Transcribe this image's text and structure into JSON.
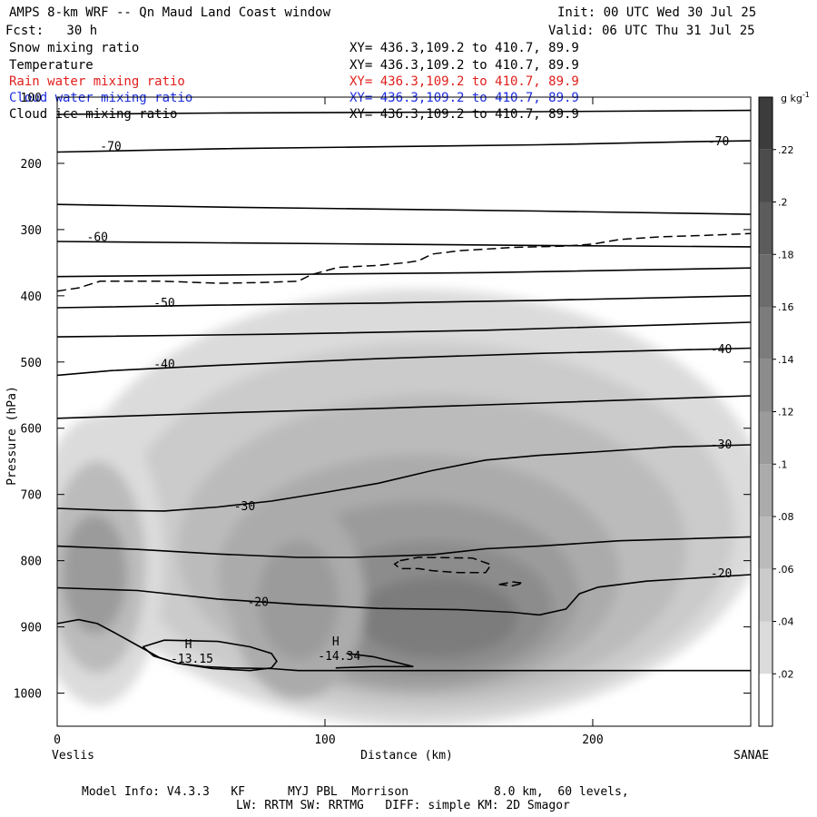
{
  "header": {
    "title": "AMPS 8-km WRF -- Qn Maud Land Coast window",
    "init": "Init: 00 UTC Wed 30 Jul 25",
    "forecast": "Fcst:   30 h",
    "valid": "Valid: 06 UTC Thu 31 Jul 25"
  },
  "fields": [
    {
      "name": "Snow mixing ratio",
      "xy": "XY= 436.3,109.2 to 410.7, 89.9",
      "color": "#000000"
    },
    {
      "name": "Temperature",
      "xy": "XY= 436.3,109.2 to 410.7, 89.9",
      "color": "#000000"
    },
    {
      "name": "Rain water mixing ratio",
      "xy": "XY= 436.3,109.2 to 410.7, 89.9",
      "color": "#e0201c"
    },
    {
      "name": "Cloud water mixing ratio",
      "xy": "XY= 436.3,109.2 to 410.7, 89.9",
      "color": "#1c2ee0"
    },
    {
      "name": "Cloud ice mixing ratio",
      "xy": "XY= 436.3,109.2 to 410.7, 89.9",
      "color": "#000000"
    }
  ],
  "chart_data": {
    "type": "cross-section contour",
    "xlabel": "Distance (km)",
    "ylabel": "Pressure (hPa)",
    "xlim": [
      0,
      259
    ],
    "ylim": [
      1050,
      100
    ],
    "x_ticks": [
      0,
      100,
      200
    ],
    "y_ticks": [
      100,
      200,
      300,
      400,
      500,
      600,
      700,
      800,
      900,
      1000
    ],
    "endpoint_left": "Veslis",
    "endpoint_right": "SANAE",
    "colorbar": {
      "unit": "g kg",
      "unit_exponent": "-1",
      "levels": [
        0.02,
        0.04,
        0.06,
        0.08,
        0.1,
        0.12,
        0.14,
        0.16,
        0.18,
        0.2,
        0.22
      ],
      "tick_labels": [
        ".02",
        ".04",
        ".06",
        ".08",
        ".1",
        ".12",
        ".14",
        ".16",
        ".18",
        ".2",
        ".22"
      ]
    },
    "isotherms": [
      {
        "value": -75,
        "points": [
          [
            0,
            126
          ],
          [
            60,
            124
          ],
          [
            120,
            123
          ],
          [
            180,
            122
          ],
          [
            259,
            120
          ]
        ]
      },
      {
        "value": -70,
        "points": [
          [
            0,
            183
          ],
          [
            60,
            178
          ],
          [
            120,
            175
          ],
          [
            180,
            172
          ],
          [
            240,
            167
          ],
          [
            259,
            166
          ]
        ]
      },
      {
        "value": -65,
        "points": [
          [
            0,
            262
          ],
          [
            60,
            266
          ],
          [
            120,
            269
          ],
          [
            180,
            272
          ],
          [
            259,
            277
          ]
        ]
      },
      {
        "value": -60,
        "points": [
          [
            0,
            318
          ],
          [
            60,
            320
          ],
          [
            120,
            322
          ],
          [
            180,
            324
          ],
          [
            259,
            326
          ]
        ]
      },
      {
        "value": -55,
        "points": [
          [
            0,
            371
          ],
          [
            80,
            368
          ],
          [
            160,
            365
          ],
          [
            259,
            358
          ]
        ]
      },
      {
        "value": -50,
        "points": [
          [
            0,
            418
          ],
          [
            60,
            414
          ],
          [
            120,
            411
          ],
          [
            180,
            407
          ],
          [
            259,
            400
          ]
        ]
      },
      {
        "value": -45,
        "points": [
          [
            0,
            462
          ],
          [
            80,
            458
          ],
          [
            160,
            452
          ],
          [
            259,
            440
          ]
        ]
      },
      {
        "value": -40,
        "points": [
          [
            0,
            520
          ],
          [
            20,
            513
          ],
          [
            60,
            505
          ],
          [
            120,
            495
          ],
          [
            180,
            487
          ],
          [
            240,
            481
          ],
          [
            259,
            479
          ]
        ]
      },
      {
        "value": -35,
        "points": [
          [
            0,
            585
          ],
          [
            60,
            577
          ],
          [
            120,
            570
          ],
          [
            180,
            562
          ],
          [
            259,
            551
          ]
        ]
      },
      {
        "value": -30,
        "points": [
          [
            0,
            721
          ],
          [
            20,
            724
          ],
          [
            40,
            725
          ],
          [
            60,
            719
          ],
          [
            80,
            710
          ],
          [
            100,
            697
          ],
          [
            120,
            683
          ],
          [
            140,
            664
          ],
          [
            160,
            648
          ],
          [
            180,
            641
          ],
          [
            200,
            636
          ],
          [
            230,
            628
          ],
          [
            259,
            625
          ]
        ]
      },
      {
        "value": -25,
        "points": [
          [
            0,
            778
          ],
          [
            30,
            783
          ],
          [
            60,
            790
          ],
          [
            90,
            795
          ],
          [
            110,
            795
          ],
          [
            140,
            791
          ],
          [
            160,
            782
          ],
          [
            180,
            778
          ],
          [
            210,
            770
          ],
          [
            259,
            764
          ]
        ]
      },
      {
        "value": -20,
        "points": [
          [
            0,
            841
          ],
          [
            30,
            845
          ],
          [
            60,
            858
          ],
          [
            90,
            866
          ],
          [
            120,
            872
          ],
          [
            150,
            874
          ],
          [
            170,
            878
          ],
          [
            180,
            882
          ],
          [
            190,
            873
          ],
          [
            195,
            850
          ],
          [
            202,
            840
          ],
          [
            220,
            831
          ],
          [
            259,
            821
          ]
        ]
      }
    ],
    "isotherm_labels": [
      {
        "text": "-70",
        "x": 20,
        "p": 175
      },
      {
        "text": "-70",
        "x": 247,
        "p": 167
      },
      {
        "text": "-60",
        "x": 15,
        "p": 312
      },
      {
        "text": "-50",
        "x": 40,
        "p": 411
      },
      {
        "text": "-40",
        "x": 40,
        "p": 504
      },
      {
        "text": "-40",
        "x": 248,
        "p": 481
      },
      {
        "text": "-30",
        "x": 70,
        "p": 718
      },
      {
        "text": "-30",
        "x": 248,
        "p": 625
      },
      {
        "text": "-20",
        "x": 75,
        "p": 863
      },
      {
        "text": "-20",
        "x": 248,
        "p": 820
      }
    ],
    "cloud_ice_contours": [
      {
        "points": [
          [
            0,
            393
          ],
          [
            8,
            388
          ],
          [
            16,
            378
          ],
          [
            40,
            378
          ],
          [
            60,
            381
          ],
          [
            75,
            380
          ],
          [
            90,
            378
          ],
          [
            95,
            368
          ],
          [
            105,
            357
          ],
          [
            120,
            354
          ],
          [
            130,
            350
          ],
          [
            135,
            347
          ],
          [
            140,
            337
          ],
          [
            150,
            332
          ],
          [
            170,
            327
          ],
          [
            190,
            325
          ],
          [
            200,
            322
          ],
          [
            210,
            315
          ],
          [
            225,
            311
          ],
          [
            240,
            309
          ],
          [
            259,
            306
          ]
        ]
      },
      {
        "points": [
          [
            128,
            800
          ],
          [
            135,
            795
          ],
          [
            155,
            796
          ],
          [
            162,
            806
          ],
          [
            160,
            818
          ],
          [
            150,
            818
          ],
          [
            140,
            815
          ],
          [
            135,
            812
          ],
          [
            128,
            812
          ],
          [
            126,
            805
          ],
          [
            128,
            800
          ]
        ]
      },
      {
        "points": [
          [
            165,
            836
          ],
          [
            170,
            832
          ],
          [
            174,
            834
          ],
          [
            170,
            838
          ],
          [
            165,
            836
          ]
        ]
      }
    ],
    "terrain_contours": [
      {
        "points": [
          [
            0,
            895
          ],
          [
            8,
            889
          ],
          [
            15,
            895
          ],
          [
            22,
            910
          ],
          [
            30,
            928
          ],
          [
            38,
            946
          ],
          [
            45,
            955
          ],
          [
            55,
            960
          ],
          [
            65,
            962
          ],
          [
            80,
            963
          ],
          [
            90,
            966
          ],
          [
            110,
            966
          ],
          [
            150,
            966
          ],
          [
            200,
            966
          ],
          [
            259,
            966
          ]
        ]
      },
      {
        "points": [
          [
            32,
            930
          ],
          [
            40,
            920
          ],
          [
            60,
            922
          ],
          [
            72,
            930
          ],
          [
            80,
            940
          ],
          [
            82,
            952
          ],
          [
            80,
            962
          ],
          [
            72,
            966
          ],
          [
            58,
            963
          ],
          [
            45,
            955
          ],
          [
            36,
            944
          ],
          [
            32,
            930
          ]
        ]
      },
      {
        "points": [
          [
            108,
            940
          ],
          [
            118,
            945
          ],
          [
            133,
            960
          ],
          [
            118,
            960
          ],
          [
            104,
            962
          ]
        ]
      }
    ],
    "terrain_minima": [
      {
        "marker": "H",
        "label": "-13.15",
        "x": 49,
        "p": 932
      },
      {
        "marker": "H",
        "label": "-14.34",
        "x": 104,
        "p": 928
      }
    ],
    "shading_blobs": [
      {
        "cx": 135,
        "cp": 720,
        "rx": 130,
        "rp": 330,
        "level": 0.02
      },
      {
        "cx": 138,
        "cp": 750,
        "rx": 115,
        "rp": 280,
        "level": 0.04
      },
      {
        "cx": 140,
        "cp": 780,
        "rx": 95,
        "rp": 230,
        "level": 0.06
      },
      {
        "cx": 135,
        "cp": 820,
        "rx": 75,
        "rp": 180,
        "level": 0.08
      },
      {
        "cx": 135,
        "cp": 850,
        "rx": 60,
        "rp": 140,
        "level": 0.1
      },
      {
        "cx": 140,
        "cp": 870,
        "rx": 45,
        "rp": 100,
        "level": 0.12
      },
      {
        "cx": 142,
        "cp": 885,
        "rx": 30,
        "rp": 60,
        "level": 0.14
      },
      {
        "cx": 15,
        "cp": 800,
        "rx": 25,
        "rp": 220,
        "level": 0.02
      },
      {
        "cx": 15,
        "cp": 810,
        "rx": 18,
        "rp": 160,
        "level": 0.06
      },
      {
        "cx": 14,
        "cp": 820,
        "rx": 12,
        "rp": 90,
        "level": 0.1
      },
      {
        "cx": 90,
        "cp": 860,
        "rx": 25,
        "rp": 150,
        "level": 0.08
      },
      {
        "cx": 90,
        "cp": 860,
        "rx": 15,
        "rp": 90,
        "level": 0.1
      }
    ]
  },
  "footer": {
    "line1": "Model Info: V4.3.3   KF      MYJ PBL  Morrison            8.0 km,  60 levels,",
    "line2": "LW: RRTM SW: RRTMG   DIFF: simple KM: 2D Smagor"
  }
}
